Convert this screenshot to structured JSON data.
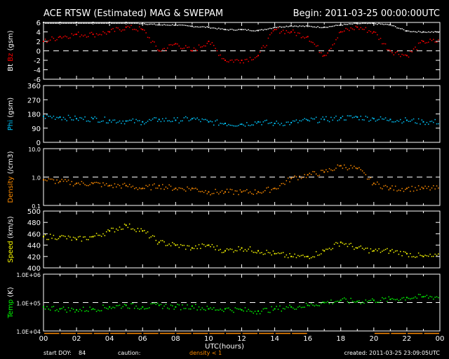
{
  "header": {
    "title": "ACE RTSW (Estimated) MAG & SWEPAM",
    "begin": "Begin: 2011-03-25 00:00:00UTC"
  },
  "footer": {
    "start_doy_label": "start DOY:",
    "start_doy": "84",
    "caution_label": "caution:",
    "caution_text": "density < 1",
    "created": "created: 2011-03-25 23:09:05UTC"
  },
  "colors": {
    "bt": "#ffffff",
    "bz": "#ff0000",
    "phi": "#00c8ff",
    "density": "#ff8c00",
    "speed": "#ffff00",
    "temp": "#00ff00",
    "caution": "#ff8c00"
  },
  "chart_data": {
    "type": "scatter",
    "xlabel": "UTC(hours)",
    "xlim": [
      0,
      24
    ],
    "xticks": [
      "00",
      "02",
      "04",
      "06",
      "08",
      "10",
      "12",
      "14",
      "16",
      "18",
      "20",
      "22",
      "00"
    ],
    "x": [
      0,
      1,
      2,
      3,
      4,
      5,
      6,
      7,
      8,
      9,
      10,
      11,
      12,
      13,
      14,
      15,
      16,
      17,
      18,
      19,
      20,
      21,
      22,
      23
    ],
    "panels": [
      {
        "ylabel_a": "Bt",
        "ylabel_b": "Bz",
        "ylabel_unit": "(gsm)",
        "scale": "linear",
        "ylim": [
          -6,
          6
        ],
        "yticks": [
          "6",
          "4",
          "2",
          "0",
          "-2",
          "-4",
          "-6"
        ],
        "ref_line": 0,
        "series": [
          {
            "name": "Bt",
            "values": [
              6,
              6,
              6,
              6,
              6,
              6,
              5.8,
              5.5,
              5.5,
              5.2,
              5,
              4.5,
              4.5,
              4.3,
              5,
              5.3,
              5.2,
              5,
              5.5,
              5.8,
              5.8,
              5.5,
              4.2,
              4
            ]
          },
          {
            "name": "Bz",
            "values": [
              2,
              3,
              3.5,
              3.5,
              4,
              5,
              4.5,
              0,
              1.5,
              0,
              2,
              -2,
              -2,
              -1,
              4.5,
              4,
              3,
              -1,
              4,
              5,
              4,
              0,
              -1,
              2
            ]
          }
        ]
      },
      {
        "ylabel_a": "Phi",
        "ylabel_unit": "(gsm)",
        "scale": "linear",
        "ylim": [
          0,
          360
        ],
        "yticks": [
          "360",
          "270",
          "180",
          "90",
          "0"
        ],
        "series": [
          {
            "name": "Phi",
            "values": [
              165,
              160,
              150,
              150,
              140,
              135,
              130,
              145,
              140,
              150,
              130,
              120,
              115,
              130,
              120,
              125,
              140,
              145,
              155,
              160,
              150,
              145,
              140,
              130
            ]
          }
        ]
      },
      {
        "ylabel_a": "Density",
        "ylabel_unit": "(/cm3)",
        "scale": "log",
        "ylim": [
          0.1,
          10
        ],
        "yticks": [
          "10.0",
          "1.0",
          "0.1"
        ],
        "ref_line": 1,
        "series": [
          {
            "name": "Density",
            "values": [
              0.8,
              0.7,
              0.6,
              0.6,
              0.5,
              0.5,
              0.4,
              0.5,
              0.4,
              0.4,
              0.3,
              0.3,
              0.3,
              0.3,
              0.4,
              0.9,
              1.2,
              1.5,
              2.5,
              2,
              0.6,
              0.4,
              0.4,
              0.4
            ]
          }
        ]
      },
      {
        "ylabel_a": "Speed",
        "ylabel_unit": "(km/s)",
        "scale": "linear",
        "ylim": [
          400,
          500
        ],
        "yticks": [
          "500",
          "480",
          "460",
          "440",
          "420",
          "400"
        ],
        "series": [
          {
            "name": "Speed",
            "values": [
              455,
              455,
              450,
              455,
              465,
              475,
              465,
              445,
              440,
              435,
              440,
              430,
              435,
              430,
              425,
              420,
              420,
              430,
              445,
              435,
              430,
              430,
              425,
              420
            ]
          }
        ]
      },
      {
        "ylabel_a": "Temp",
        "ylabel_unit": "(K)",
        "scale": "log",
        "ylim": [
          10000,
          1000000
        ],
        "yticks": [
          "1.0E+06",
          "1.0E+05",
          "1.0E+04"
        ],
        "ref_line": 100000,
        "series": [
          {
            "name": "Temp",
            "values": [
              70000,
              60000,
              55000,
              60000,
              70000,
              80000,
              70000,
              80000,
              70000,
              75000,
              60000,
              60000,
              55000,
              50000,
              60000,
              70000,
              80000,
              100000,
              120000,
              110000,
              120000,
              130000,
              150000,
              160000
            ]
          }
        ]
      }
    ]
  }
}
